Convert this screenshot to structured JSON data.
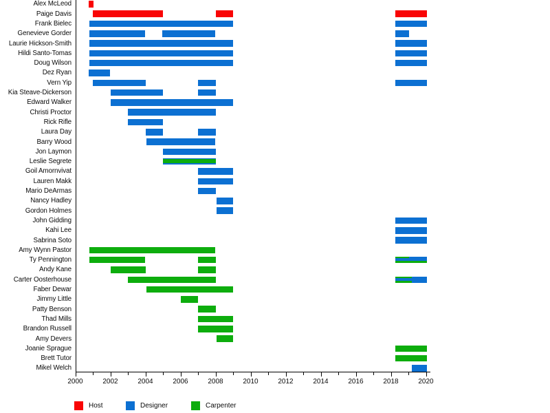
{
  "chart_data": {
    "type": "gantt-timeline",
    "title": "",
    "description": "Cast tenure timeline by role (Host / Designer / Carpenter), 2000-2020",
    "colors": {
      "host": "#f90505",
      "designer": "#0c70d2",
      "carpenter": "#0dad0d"
    },
    "x_axis": {
      "min": 2000,
      "max": 2020,
      "minor_tick_every": 1,
      "labeled_tick_every": 2,
      "tick_labels": [
        "2000",
        "2002",
        "2004",
        "2006",
        "2008",
        "2010",
        "2012",
        "2014",
        "2016",
        "2018",
        "2020"
      ]
    },
    "legend": {
      "position": "bottom-left",
      "items": [
        {
          "role": "host",
          "label": "Host"
        },
        {
          "role": "designer",
          "label": "Designer"
        },
        {
          "role": "carpenter",
          "label": "Carpenter"
        }
      ]
    },
    "rows": [
      {
        "name": "Alex McLeod",
        "bars": [
          {
            "role": "host",
            "start": 2000.75,
            "end": 2001.05
          }
        ]
      },
      {
        "name": "Paige Davis",
        "bars": [
          {
            "role": "host",
            "start": 2001.0,
            "end": 2005.0
          },
          {
            "role": "host",
            "start": 2008.0,
            "end": 2009.0
          },
          {
            "role": "host",
            "start": 2018.25,
            "end": 2020.05
          }
        ]
      },
      {
        "name": "Frank Bielec",
        "bars": [
          {
            "role": "designer",
            "start": 2000.8,
            "end": 2009.0
          },
          {
            "role": "designer",
            "start": 2018.25,
            "end": 2020.05
          }
        ]
      },
      {
        "name": "Genevieve Gorder",
        "bars": [
          {
            "role": "designer",
            "start": 2000.8,
            "end": 2004.0
          },
          {
            "role": "designer",
            "start": 2004.95,
            "end": 2008.0
          },
          {
            "role": "designer",
            "start": 2018.25,
            "end": 2019.05
          }
        ]
      },
      {
        "name": "Laurie Hickson-Smith",
        "bars": [
          {
            "role": "designer",
            "start": 2000.8,
            "end": 2009.0
          },
          {
            "role": "designer",
            "start": 2018.25,
            "end": 2020.05
          }
        ]
      },
      {
        "name": "Hildi Santo-Tomas",
        "bars": [
          {
            "role": "designer",
            "start": 2000.8,
            "end": 2009.0
          },
          {
            "role": "designer",
            "start": 2018.25,
            "end": 2020.05
          }
        ]
      },
      {
        "name": "Doug Wilson",
        "bars": [
          {
            "role": "designer",
            "start": 2000.8,
            "end": 2009.0
          },
          {
            "role": "designer",
            "start": 2018.25,
            "end": 2020.05
          }
        ]
      },
      {
        "name": "Dez Ryan",
        "bars": [
          {
            "role": "designer",
            "start": 2000.75,
            "end": 2002.0
          }
        ]
      },
      {
        "name": "Vern Yip",
        "bars": [
          {
            "role": "designer",
            "start": 2001.0,
            "end": 2004.0
          },
          {
            "role": "designer",
            "start": 2007.0,
            "end": 2008.0
          },
          {
            "role": "designer",
            "start": 2018.25,
            "end": 2020.05
          }
        ]
      },
      {
        "name": "Kia Steave-Dickerson",
        "bars": [
          {
            "role": "designer",
            "start": 2002.0,
            "end": 2005.0
          },
          {
            "role": "designer",
            "start": 2007.0,
            "end": 2008.0
          }
        ]
      },
      {
        "name": "Edward Walker",
        "bars": [
          {
            "role": "designer",
            "start": 2002.0,
            "end": 2009.0
          }
        ]
      },
      {
        "name": "Christi Proctor",
        "bars": [
          {
            "role": "designer",
            "start": 2003.0,
            "end": 2008.0
          }
        ]
      },
      {
        "name": "Rick Rifle",
        "bars": [
          {
            "role": "designer",
            "start": 2003.0,
            "end": 2005.0
          }
        ]
      },
      {
        "name": "Laura Day",
        "bars": [
          {
            "role": "designer",
            "start": 2004.0,
            "end": 2005.0
          },
          {
            "role": "designer",
            "start": 2007.0,
            "end": 2008.0
          }
        ]
      },
      {
        "name": "Barry Wood",
        "bars": [
          {
            "role": "designer",
            "start": 2004.05,
            "end": 2008.0
          }
        ]
      },
      {
        "name": "Jon Laymon",
        "bars": [
          {
            "role": "designer",
            "start": 2005.0,
            "end": 2008.0
          }
        ]
      },
      {
        "name": "Leslie Segrete",
        "bars": [
          {
            "role": "designer",
            "start": 2005.0,
            "end": 2008.0
          },
          {
            "role": "carpenter",
            "start": 2005.0,
            "end": 2008.0,
            "band": [
              0.16,
              0.62
            ]
          }
        ]
      },
      {
        "name": "Goil Amornvivat",
        "bars": [
          {
            "role": "designer",
            "start": 2007.0,
            "end": 2009.0
          }
        ]
      },
      {
        "name": "Lauren Makk",
        "bars": [
          {
            "role": "designer",
            "start": 2007.0,
            "end": 2009.0
          }
        ]
      },
      {
        "name": "Mario DeArmas",
        "bars": [
          {
            "role": "designer",
            "start": 2007.0,
            "end": 2008.0
          }
        ]
      },
      {
        "name": "Nancy Hadley",
        "bars": [
          {
            "role": "designer",
            "start": 2008.05,
            "end": 2009.0
          }
        ]
      },
      {
        "name": "Gordon Holmes",
        "bars": [
          {
            "role": "designer",
            "start": 2008.05,
            "end": 2009.0
          }
        ]
      },
      {
        "name": "John Gidding",
        "bars": [
          {
            "role": "designer",
            "start": 2018.25,
            "end": 2020.05
          }
        ]
      },
      {
        "name": "Kahi Lee",
        "bars": [
          {
            "role": "designer",
            "start": 2018.25,
            "end": 2020.05
          }
        ]
      },
      {
        "name": "Sabrina Soto",
        "bars": [
          {
            "role": "designer",
            "start": 2018.25,
            "end": 2020.05
          }
        ]
      },
      {
        "name": "Amy Wynn Pastor",
        "bars": [
          {
            "role": "carpenter",
            "start": 2000.8,
            "end": 2008.0
          }
        ]
      },
      {
        "name": "Ty Pennington",
        "bars": [
          {
            "role": "carpenter",
            "start": 2000.8,
            "end": 2004.0
          },
          {
            "role": "carpenter",
            "start": 2007.0,
            "end": 2008.0
          },
          {
            "role": "carpenter",
            "start": 2018.25,
            "end": 2020.05
          },
          {
            "role": "designer",
            "start": 2018.25,
            "end": 2019.05,
            "band": [
              0.25,
              0.4
            ]
          },
          {
            "role": "designer",
            "start": 2019.05,
            "end": 2020.05,
            "band": [
              0,
              0.7
            ]
          }
        ]
      },
      {
        "name": "Andy Kane",
        "bars": [
          {
            "role": "carpenter",
            "start": 2002.0,
            "end": 2004.0
          },
          {
            "role": "carpenter",
            "start": 2007.0,
            "end": 2008.0
          }
        ]
      },
      {
        "name": "Carter Oosterhouse",
        "bars": [
          {
            "role": "carpenter",
            "start": 2003.0,
            "end": 2008.0
          },
          {
            "role": "carpenter",
            "start": 2018.25,
            "end": 2019.2
          },
          {
            "role": "designer",
            "start": 2018.25,
            "end": 2019.2,
            "band": [
              0.25,
              0.4
            ]
          },
          {
            "role": "designer",
            "start": 2019.2,
            "end": 2020.05
          }
        ]
      },
      {
        "name": "Faber Dewar",
        "bars": [
          {
            "role": "carpenter",
            "start": 2004.05,
            "end": 2009.0
          }
        ]
      },
      {
        "name": "Jimmy Little",
        "bars": [
          {
            "role": "carpenter",
            "start": 2006.0,
            "end": 2007.0
          }
        ]
      },
      {
        "name": "Patty Benson",
        "bars": [
          {
            "role": "carpenter",
            "start": 2007.0,
            "end": 2008.0
          }
        ]
      },
      {
        "name": "Thad Mills",
        "bars": [
          {
            "role": "carpenter",
            "start": 2007.0,
            "end": 2009.0
          }
        ]
      },
      {
        "name": "Brandon Russell",
        "bars": [
          {
            "role": "carpenter",
            "start": 2007.0,
            "end": 2009.0
          }
        ]
      },
      {
        "name": "Amy Devers",
        "bars": [
          {
            "role": "carpenter",
            "start": 2008.05,
            "end": 2009.0
          }
        ]
      },
      {
        "name": "Joanie Sprague",
        "bars": [
          {
            "role": "carpenter",
            "start": 2018.25,
            "end": 2020.05
          }
        ]
      },
      {
        "name": "Brett Tutor",
        "bars": [
          {
            "role": "carpenter",
            "start": 2018.25,
            "end": 2020.05
          }
        ]
      },
      {
        "name": "Mikel Welch",
        "bars": [
          {
            "role": "designer",
            "start": 2019.2,
            "end": 2020.05
          }
        ]
      }
    ]
  }
}
